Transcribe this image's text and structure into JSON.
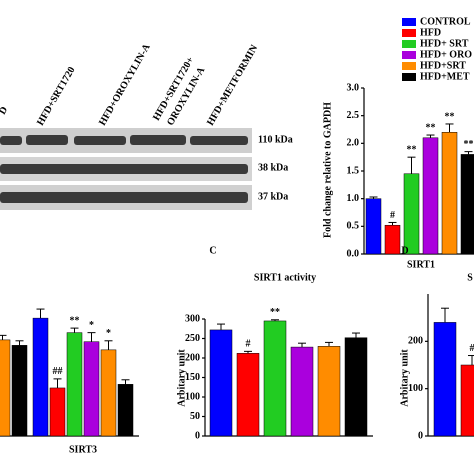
{
  "blot": {
    "lanes": [
      "D",
      "HFD+SRT1720",
      "HFD+OROXYLIN-A",
      "HFD+SRT1720+",
      "OROXYLIN-A",
      "HFD+METFORMIN"
    ],
    "bands": [
      "110 kDa",
      "38 kDa",
      "37 kDa"
    ]
  },
  "chart_data": [
    {
      "type": "bar",
      "y_label": "Fold change relative to GAPDH",
      "categories": [
        "SIRT1"
      ],
      "ylim": [
        0,
        3.0
      ],
      "yticks": [
        {
          "value": 0,
          "label": "0.0"
        },
        0.5,
        {
          "value": 1,
          "label": "1.0"
        },
        1.5,
        {
          "value": 2,
          "label": "2.0"
        },
        2.5,
        {
          "value": 3,
          "label": "3.0"
        }
      ],
      "legend": "top-right",
      "series": [
        {
          "name": "CONTROL",
          "color": "#0000ff",
          "values": [
            1.0
          ],
          "errors": [
            0.03
          ],
          "annotations": [
            null
          ]
        },
        {
          "name": "HFD",
          "color": "#ff0000",
          "values": [
            0.52
          ],
          "errors": [
            0.05
          ],
          "annotations": [
            "#"
          ]
        },
        {
          "name": "HFD+ SRT",
          "color": "#22cc22",
          "values": [
            1.45
          ],
          "errors": [
            0.3
          ],
          "annotations": [
            "**"
          ]
        },
        {
          "name": "HFD+ ORO",
          "color": "#aa00dd",
          "values": [
            2.1
          ],
          "errors": [
            0.05
          ],
          "annotations": [
            "**"
          ]
        },
        {
          "name": "HFD+SRT",
          "color": "#ff8c00",
          "values": [
            2.2
          ],
          "errors": [
            0.15
          ],
          "annotations": [
            "**"
          ]
        },
        {
          "name": "HFD+MET",
          "color": "#000000",
          "values": [
            1.8
          ],
          "errors": [
            0.05
          ],
          "annotations": [
            "**"
          ]
        }
      ]
    },
    {
      "type": "bar",
      "categories": [
        null,
        "SIRT3"
      ],
      "ylim": [
        0,
        1.5
      ],
      "series": [
        {
          "color": "#0000ff",
          "values": [
            null,
            1.3
          ],
          "errors": [
            null,
            0.1
          ],
          "annotations": [
            null,
            null
          ]
        },
        {
          "color": "#ff0000",
          "values": [
            null,
            0.53
          ],
          "errors": [
            null,
            0.1
          ],
          "annotations": [
            null,
            "##"
          ]
        },
        {
          "color": "#22cc22",
          "values": [
            null,
            1.14
          ],
          "errors": [
            null,
            0.05
          ],
          "annotations": [
            null,
            "**"
          ]
        },
        {
          "color": "#aa00dd",
          "values": [
            null,
            1.04
          ],
          "errors": [
            null,
            0.1
          ],
          "annotations": [
            null,
            "*"
          ]
        },
        {
          "color": "#ff8c00",
          "values": [
            1.06,
            0.95
          ],
          "errors": [
            0.05,
            0.1
          ],
          "annotations": [
            null,
            "*"
          ]
        },
        {
          "color": "#000000",
          "values": [
            1.0,
            0.57
          ],
          "errors": [
            0.05,
            0.05
          ],
          "annotations": [
            null,
            null
          ]
        }
      ]
    },
    {
      "type": "bar",
      "letter": "C",
      "title": "SIRT1 activity",
      "y_label": "Arbitary unit",
      "categories": [
        null
      ],
      "ylim": [
        0,
        300
      ],
      "yticks": [
        0,
        50,
        100,
        150,
        200,
        250,
        300
      ],
      "series": [
        {
          "color": "#0000ff",
          "values": [
            272
          ],
          "errors": [
            15
          ],
          "annotations": [
            null
          ]
        },
        {
          "color": "#ff0000",
          "values": [
            212
          ],
          "errors": [
            5
          ],
          "annotations": [
            "#"
          ]
        },
        {
          "color": "#22cc22",
          "values": [
            295
          ],
          "errors": [
            3
          ],
          "annotations": [
            "**"
          ]
        },
        {
          "color": "#aa00dd",
          "values": [
            228
          ],
          "errors": [
            10
          ],
          "annotations": [
            null
          ]
        },
        {
          "color": "#ff8c00",
          "values": [
            230
          ],
          "errors": [
            10
          ],
          "annotations": [
            null
          ]
        },
        {
          "color": "#000000",
          "values": [
            252
          ],
          "errors": [
            12
          ],
          "annotations": [
            null
          ]
        }
      ]
    },
    {
      "type": "bar",
      "letter": "D",
      "title": "S",
      "y_label": "Arbitary unit",
      "categories": [
        null
      ],
      "ylim": [
        0,
        300
      ],
      "yticks": [
        0,
        100,
        200
      ],
      "series": [
        {
          "color": "#0000ff",
          "values": [
            240
          ],
          "errors": [
            30
          ],
          "annotations": [
            null
          ]
        },
        {
          "color": "#ff0000",
          "values": [
            150
          ],
          "errors": [
            20
          ],
          "annotations": [
            "#"
          ]
        }
      ]
    }
  ]
}
